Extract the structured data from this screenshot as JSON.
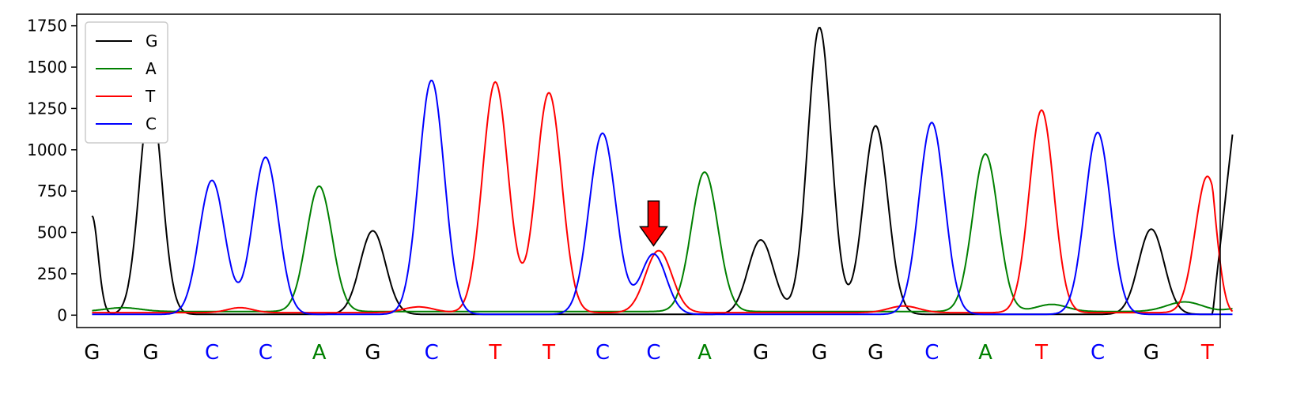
{
  "chart_data": {
    "type": "line",
    "title": "",
    "xlabel": "",
    "ylabel": "",
    "ylim": [
      -75,
      1820
    ],
    "xlim": [
      -0.3,
      22.1
    ],
    "yticks": [
      0,
      250,
      500,
      750,
      1000,
      1250,
      1500,
      1750
    ],
    "grid": false,
    "legend_position": "top-left",
    "bases": [
      "G",
      "G",
      "C",
      "C",
      "A",
      "G",
      "C",
      "T",
      "T",
      "C",
      "C",
      "A",
      "G",
      "G",
      "G",
      "C",
      "A",
      "T",
      "C",
      "G",
      "T"
    ],
    "base_positions": [
      0,
      1.15,
      2.35,
      3.4,
      4.45,
      5.5,
      6.65,
      7.9,
      8.95,
      10.0,
      11.0,
      12.0,
      13.1,
      14.25,
      15.35,
      16.45,
      17.5,
      18.6,
      19.7,
      20.75,
      21.85
    ],
    "base_colors": {
      "G": "#000000",
      "A": "#008000",
      "T": "#ff0000",
      "C": "#0000ff"
    },
    "series": [
      {
        "name": "G",
        "color": "#000000",
        "baseline": 5,
        "start": 600,
        "end": 1120,
        "peaks": [
          [
            0,
            600,
            0.12
          ],
          [
            1.15,
            1320,
            0.22
          ],
          [
            5.5,
            510,
            0.25
          ],
          [
            13.1,
            455,
            0.25
          ],
          [
            14.25,
            1740,
            0.23
          ],
          [
            15.35,
            1145,
            0.24
          ],
          [
            20.75,
            520,
            0.25
          ]
        ]
      },
      {
        "name": "A",
        "color": "#008000",
        "baseline": 22,
        "start": 20,
        "end": 40,
        "peaks": [
          [
            0.6,
            45,
            0.35
          ],
          [
            4.45,
            780,
            0.25
          ],
          [
            12.0,
            865,
            0.26
          ],
          [
            17.5,
            975,
            0.25
          ],
          [
            18.8,
            65,
            0.3
          ],
          [
            21.4,
            80,
            0.35
          ]
        ]
      },
      {
        "name": "T",
        "color": "#ff0000",
        "baseline": 15,
        "start": 15,
        "end": 20,
        "peaks": [
          [
            2.9,
            45,
            0.25
          ],
          [
            6.4,
            50,
            0.3
          ],
          [
            7.9,
            1410,
            0.25
          ],
          [
            8.95,
            1345,
            0.25
          ],
          [
            11.1,
            390,
            0.26
          ],
          [
            15.9,
            55,
            0.3
          ],
          [
            18.6,
            1240,
            0.24
          ],
          [
            21.85,
            840,
            0.24
          ]
        ]
      },
      {
        "name": "C",
        "color": "#0000ff",
        "baseline": 5,
        "start": 5,
        "end": 5,
        "peaks": [
          [
            2.35,
            815,
            0.25
          ],
          [
            3.4,
            955,
            0.25
          ],
          [
            6.65,
            1420,
            0.25
          ],
          [
            10.0,
            1100,
            0.26
          ],
          [
            11.0,
            370,
            0.25
          ],
          [
            16.45,
            1165,
            0.25
          ],
          [
            19.7,
            1105,
            0.25
          ]
        ]
      }
    ],
    "annotation": {
      "type": "arrow",
      "color": "#ff0000",
      "points_to_base_index": 10
    }
  }
}
